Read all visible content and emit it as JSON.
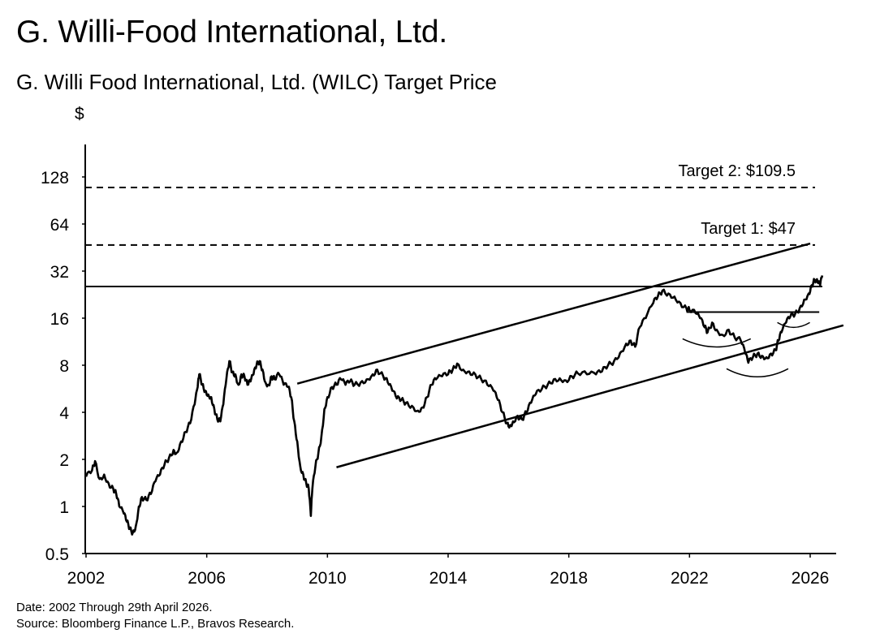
{
  "header": {
    "title": "G. Willi-Food International, Ltd.",
    "subtitle": "G. Willi Food International, Ltd. (WILC) Target Price"
  },
  "footer": {
    "date_note": "Date: 2002 Through 29th April 2026.",
    "source_note": "Source: Bloomberg Finance L.P., Bravos Research."
  },
  "chart_data": {
    "type": "line",
    "ylabel": "$",
    "yscale": "log2",
    "ylim": [
      0.5,
      181
    ],
    "xlim": [
      2002.0,
      2027.1
    ],
    "yticks": [
      0.5,
      1,
      2,
      4,
      8,
      16,
      32,
      64,
      128
    ],
    "ytick_labels": [
      "0.5",
      "1",
      "2",
      "4",
      "8",
      "16",
      "32",
      "64",
      "128"
    ],
    "xticks": [
      2002,
      2006,
      2010,
      2014,
      2018,
      2022,
      2026
    ],
    "xtick_labels": [
      "2002",
      "2006",
      "2010",
      "2014",
      "2018",
      "2022",
      "2026"
    ],
    "grid": false,
    "series": [
      {
        "points": [
          [
            2002.0,
            1.55
          ],
          [
            2002.2,
            1.7
          ],
          [
            2002.3,
            1.95
          ],
          [
            2002.45,
            1.5
          ],
          [
            2002.6,
            1.6
          ],
          [
            2002.75,
            1.4
          ],
          [
            2002.9,
            1.3
          ],
          [
            2003.0,
            1.2
          ],
          [
            2003.1,
            1.0
          ],
          [
            2003.25,
            0.9
          ],
          [
            2003.35,
            0.8
          ],
          [
            2003.45,
            0.72
          ],
          [
            2003.55,
            0.68
          ],
          [
            2003.65,
            0.75
          ],
          [
            2003.75,
            1.0
          ],
          [
            2003.85,
            1.15
          ],
          [
            2004.0,
            1.1
          ],
          [
            2004.15,
            1.2
          ],
          [
            2004.3,
            1.45
          ],
          [
            2004.45,
            1.6
          ],
          [
            2004.6,
            1.85
          ],
          [
            2004.75,
            2.05
          ],
          [
            2004.9,
            2.3
          ],
          [
            2005.0,
            2.2
          ],
          [
            2005.15,
            2.6
          ],
          [
            2005.3,
            3.0
          ],
          [
            2005.45,
            3.4
          ],
          [
            2005.6,
            4.5
          ],
          [
            2005.7,
            5.8
          ],
          [
            2005.75,
            7.0
          ],
          [
            2005.85,
            6.0
          ],
          [
            2005.95,
            5.5
          ],
          [
            2006.05,
            5.2
          ],
          [
            2006.15,
            5.0
          ],
          [
            2006.25,
            4.2
          ],
          [
            2006.35,
            3.6
          ],
          [
            2006.45,
            3.5
          ],
          [
            2006.55,
            4.5
          ],
          [
            2006.65,
            6.5
          ],
          [
            2006.75,
            8.5
          ],
          [
            2006.85,
            7.2
          ],
          [
            2006.95,
            7.0
          ],
          [
            2007.05,
            6.0
          ],
          [
            2007.15,
            7.0
          ],
          [
            2007.25,
            6.8
          ],
          [
            2007.35,
            6.0
          ],
          [
            2007.45,
            6.3
          ],
          [
            2007.55,
            7.0
          ],
          [
            2007.65,
            8.0
          ],
          [
            2007.75,
            8.5
          ],
          [
            2007.85,
            7.5
          ],
          [
            2007.95,
            6.2
          ],
          [
            2008.05,
            6.0
          ],
          [
            2008.15,
            6.8
          ],
          [
            2008.25,
            6.5
          ],
          [
            2008.4,
            7.0
          ],
          [
            2008.55,
            6.0
          ],
          [
            2008.7,
            5.8
          ],
          [
            2008.8,
            5.0
          ],
          [
            2008.9,
            3.5
          ],
          [
            2009.0,
            2.6
          ],
          [
            2009.1,
            1.8
          ],
          [
            2009.2,
            1.6
          ],
          [
            2009.3,
            1.4
          ],
          [
            2009.38,
            1.3
          ],
          [
            2009.45,
            0.87
          ],
          [
            2009.5,
            1.3
          ],
          [
            2009.6,
            1.8
          ],
          [
            2009.7,
            2.2
          ],
          [
            2009.8,
            2.8
          ],
          [
            2009.9,
            4.2
          ],
          [
            2010.0,
            5.0
          ],
          [
            2010.15,
            5.8
          ],
          [
            2010.3,
            6.0
          ],
          [
            2010.45,
            6.5
          ],
          [
            2010.6,
            6.0
          ],
          [
            2010.75,
            6.3
          ],
          [
            2010.9,
            6.0
          ],
          [
            2011.1,
            6.2
          ],
          [
            2011.3,
            6.5
          ],
          [
            2011.5,
            7.0
          ],
          [
            2011.65,
            7.5
          ],
          [
            2011.85,
            6.8
          ],
          [
            2012.0,
            6.2
          ],
          [
            2012.15,
            5.5
          ],
          [
            2012.3,
            4.9
          ],
          [
            2012.45,
            4.8
          ],
          [
            2012.6,
            4.6
          ],
          [
            2012.8,
            4.4
          ],
          [
            2013.0,
            4.1
          ],
          [
            2013.15,
            4.3
          ],
          [
            2013.3,
            5.0
          ],
          [
            2013.45,
            6.0
          ],
          [
            2013.6,
            6.5
          ],
          [
            2013.8,
            6.8
          ],
          [
            2014.0,
            7.0
          ],
          [
            2014.15,
            7.5
          ],
          [
            2014.3,
            8.2
          ],
          [
            2014.5,
            7.5
          ],
          [
            2014.7,
            7.3
          ],
          [
            2014.9,
            7.0
          ],
          [
            2015.1,
            6.5
          ],
          [
            2015.3,
            6.0
          ],
          [
            2015.5,
            5.5
          ],
          [
            2015.65,
            4.8
          ],
          [
            2015.8,
            4.0
          ],
          [
            2015.95,
            3.4
          ],
          [
            2016.05,
            3.3
          ],
          [
            2016.15,
            3.5
          ],
          [
            2016.3,
            3.8
          ],
          [
            2016.45,
            3.6
          ],
          [
            2016.6,
            4.0
          ],
          [
            2016.75,
            4.6
          ],
          [
            2016.9,
            5.2
          ],
          [
            2017.1,
            5.6
          ],
          [
            2017.3,
            6.0
          ],
          [
            2017.5,
            6.5
          ],
          [
            2017.7,
            6.6
          ],
          [
            2017.9,
            6.4
          ],
          [
            2018.1,
            6.8
          ],
          [
            2018.3,
            7.1
          ],
          [
            2018.6,
            7.0
          ],
          [
            2018.9,
            7.0
          ],
          [
            2019.1,
            7.3
          ],
          [
            2019.3,
            8.0
          ],
          [
            2019.5,
            8.5
          ],
          [
            2019.7,
            9.6
          ],
          [
            2019.9,
            11.0
          ],
          [
            2020.05,
            11.5
          ],
          [
            2020.2,
            10.5
          ],
          [
            2020.35,
            14.0
          ],
          [
            2020.55,
            16.0
          ],
          [
            2020.8,
            20.0
          ],
          [
            2020.95,
            22.0
          ],
          [
            2021.1,
            24.0
          ],
          [
            2021.3,
            23.0
          ],
          [
            2021.5,
            22.0
          ],
          [
            2021.7,
            20.0
          ],
          [
            2021.9,
            18.5
          ],
          [
            2022.0,
            18.0
          ],
          [
            2022.2,
            17.2
          ],
          [
            2022.35,
            16.0
          ],
          [
            2022.5,
            14.0
          ],
          [
            2022.6,
            13.0
          ],
          [
            2022.75,
            15.0
          ],
          [
            2022.9,
            13.5
          ],
          [
            2023.1,
            12.5
          ],
          [
            2023.3,
            13.5
          ],
          [
            2023.5,
            12.0
          ],
          [
            2023.7,
            11.5
          ],
          [
            2023.85,
            9.5
          ],
          [
            2023.95,
            8.3
          ],
          [
            2024.1,
            9.0
          ],
          [
            2024.25,
            9.5
          ],
          [
            2024.4,
            9.2
          ],
          [
            2024.55,
            9.0
          ],
          [
            2024.7,
            9.5
          ],
          [
            2024.85,
            10.0
          ],
          [
            2024.95,
            11.5
          ],
          [
            2025.05,
            13.0
          ],
          [
            2025.2,
            15.0
          ],
          [
            2025.35,
            16.5
          ],
          [
            2025.5,
            17.0
          ],
          [
            2025.65,
            18.5
          ],
          [
            2025.8,
            21.0
          ],
          [
            2025.95,
            23.0
          ],
          [
            2026.05,
            26.0
          ],
          [
            2026.15,
            28.0
          ],
          [
            2026.25,
            27.0
          ],
          [
            2026.33,
            26.0
          ],
          [
            2026.4,
            30.0
          ]
        ]
      }
    ],
    "reference_lines": [
      {
        "label": "Target 2: $109.5",
        "y": 109.5,
        "style": "dashed"
      },
      {
        "label": "Target 1: $47",
        "y": 47,
        "style": "dashed"
      },
      {
        "y": 25.5,
        "x_range": [
          2002.0,
          2026.4
        ],
        "style": "solid"
      },
      {
        "y": 17.5,
        "x_range": [
          2021.9,
          2026.3
        ],
        "style": "solid"
      }
    ],
    "trend_lines": [
      {
        "from": [
          2009.0,
          6.1
        ],
        "to": [
          2026.0,
          48.0
        ],
        "role": "upper-channel"
      },
      {
        "from": [
          2010.3,
          1.78
        ],
        "to": [
          2027.1,
          14.4
        ],
        "role": "lower-channel"
      }
    ],
    "arc_annotations": [
      {
        "center": [
          2022.9,
          11.8
        ],
        "role": "left-shoulder"
      },
      {
        "center": [
          2024.25,
          7.6
        ],
        "role": "head"
      },
      {
        "center": [
          2025.45,
          15.0
        ],
        "role": "right-shoulder"
      }
    ]
  }
}
